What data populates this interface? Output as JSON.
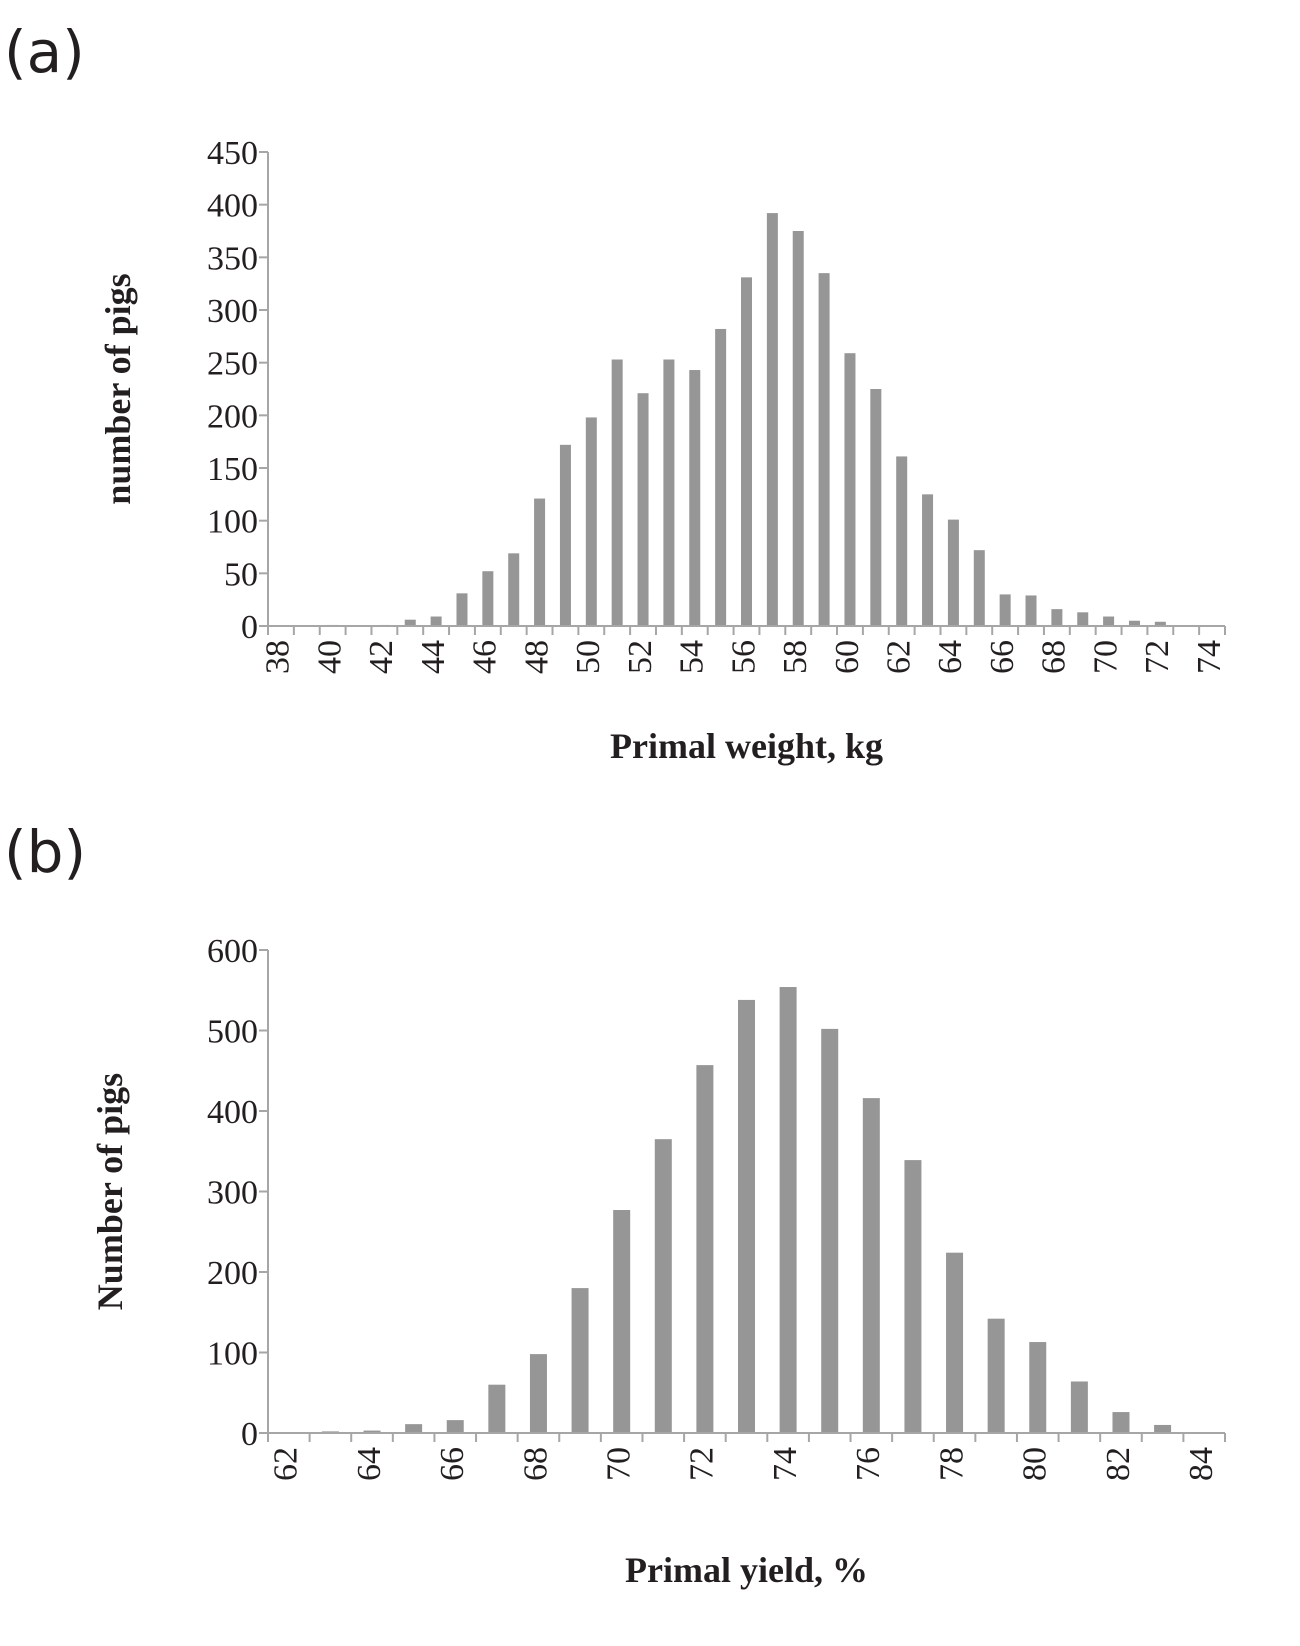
{
  "chart_data": [
    {
      "type": "bar",
      "panel_label": "(a)",
      "title": "",
      "xlabel": "Primal weight, kg",
      "ylabel": "number of pigs",
      "ylim": [
        0,
        450
      ],
      "yticks": [
        0,
        50,
        100,
        150,
        200,
        250,
        300,
        350,
        400,
        450
      ],
      "xlim": [
        37.5,
        74.5
      ],
      "xtick_labels": [
        "38",
        "40",
        "42",
        "44",
        "46",
        "48",
        "50",
        "52",
        "54",
        "56",
        "58",
        "60",
        "62",
        "64",
        "66",
        "68",
        "70",
        "72",
        "74"
      ],
      "x": [
        38,
        39,
        40,
        41,
        42,
        43,
        44,
        45,
        46,
        47,
        48,
        49,
        50,
        51,
        52,
        53,
        54,
        55,
        56,
        57,
        58,
        59,
        60,
        61,
        62,
        63,
        64,
        65,
        66,
        67,
        68,
        69,
        70,
        71,
        72,
        73,
        74
      ],
      "values": [
        0,
        0,
        1,
        0,
        1,
        6,
        9,
        31,
        52,
        69,
        121,
        172,
        198,
        253,
        221,
        253,
        243,
        282,
        331,
        392,
        375,
        335,
        259,
        225,
        161,
        125,
        101,
        72,
        30,
        29,
        16,
        13,
        9,
        5,
        4,
        0,
        0
      ],
      "color": "#969696",
      "grid": false,
      "legend": "none"
    },
    {
      "type": "bar",
      "panel_label": "(b)",
      "title": "",
      "xlabel": "Primal yield, %",
      "ylabel": "Number of pigs",
      "ylim": [
        0,
        600
      ],
      "yticks": [
        0,
        100,
        200,
        300,
        400,
        500,
        600
      ],
      "xlim": [
        61.5,
        84.5
      ],
      "xtick_labels": [
        "62",
        "64",
        "66",
        "68",
        "70",
        "72",
        "74",
        "76",
        "78",
        "80",
        "82",
        "84"
      ],
      "x": [
        62,
        63,
        64,
        65,
        66,
        67,
        68,
        69,
        70,
        71,
        72,
        73,
        74,
        75,
        76,
        77,
        78,
        79,
        80,
        81,
        82,
        83,
        84
      ],
      "values": [
        0,
        2,
        3,
        11,
        16,
        60,
        98,
        180,
        277,
        365,
        457,
        538,
        554,
        502,
        416,
        339,
        224,
        142,
        113,
        64,
        26,
        10,
        0
      ],
      "color": "#969696",
      "grid": false,
      "legend": "none"
    }
  ]
}
